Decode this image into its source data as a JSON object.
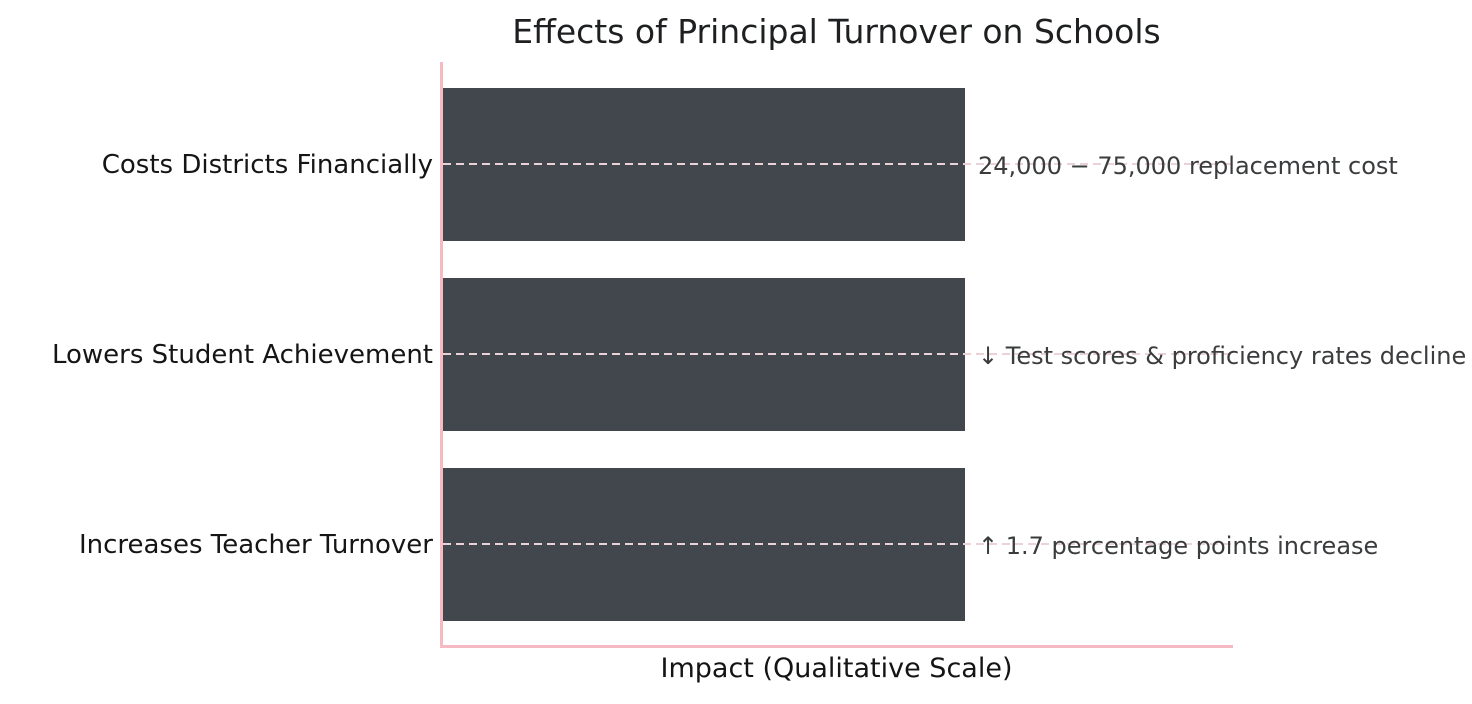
{
  "chart": {
    "title": "Effects of Principal Turnover on Schools",
    "xlabel": "Impact (Qualitative Scale)"
  },
  "chart_data": {
    "type": "bar",
    "orientation": "horizontal",
    "title": "Effects of Principal Turnover on Schools",
    "xlabel": "Impact (Qualitative Scale)",
    "ylabel": "",
    "categories": [
      "Costs Districts Financially",
      "Lowers Student Achievement",
      "Increases Teacher Turnover"
    ],
    "values": [
      1,
      1,
      1
    ],
    "annotations": [
      "24,000 − 75,000 replacement cost",
      "↓ Test scores & proficiency rates decline",
      "↑ 1.7 percentage points increase"
    ],
    "xlim": [
      0,
      1.52
    ],
    "x_tick_labels": [],
    "grid": "dashed horizontal leader lines at each bar center",
    "legend": "none",
    "bar_color": "#42474e",
    "axis_spine_color": "#f6bac2",
    "gridline_color": "#ead2d6",
    "title_color": "#1d1f21",
    "label_color": "#151515",
    "annotation_color": "#3a3c3e"
  }
}
